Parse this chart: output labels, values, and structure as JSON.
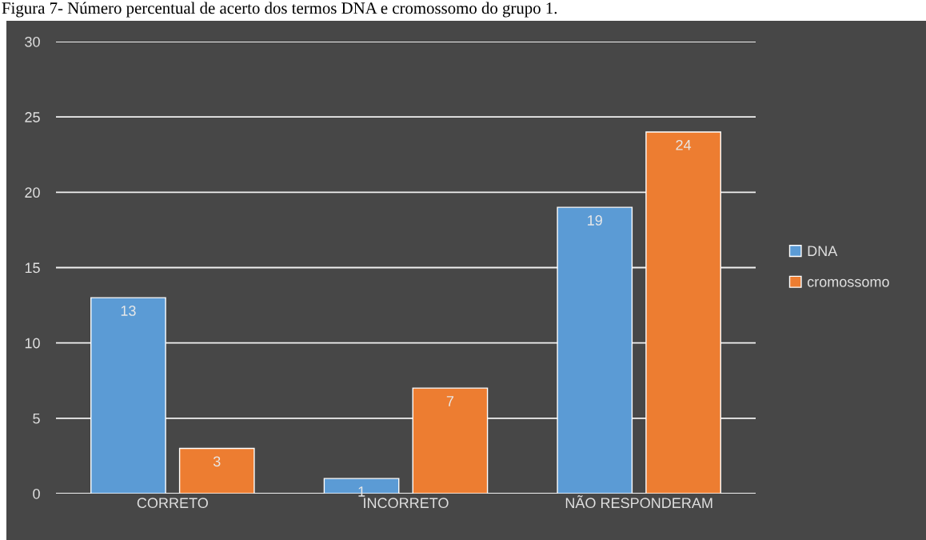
{
  "chart_data": {
    "type": "bar",
    "title": "Figura 7- Número percentual de acerto dos termos DNA e cromossomo do grupo 1.",
    "categories": [
      "CORRETO",
      "INCORRETO",
      "NÃO RESPONDERAM"
    ],
    "series": [
      {
        "name": "DNA",
        "color": "#5b9bd5",
        "values": [
          13,
          1,
          19
        ]
      },
      {
        "name": "cromossomo",
        "color": "#ed7d31",
        "values": [
          3,
          7,
          24
        ]
      }
    ],
    "ylim": [
      0,
      30
    ],
    "yticks": [
      0,
      5,
      10,
      15,
      20,
      25,
      30
    ],
    "grid": "y",
    "legend": "right",
    "data_labels": true
  }
}
